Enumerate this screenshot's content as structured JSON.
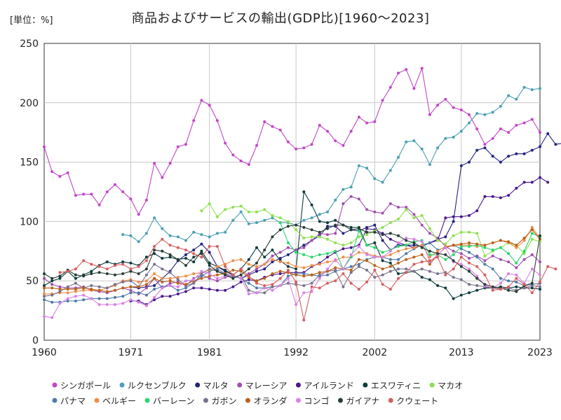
{
  "unit_label": "[単位：%]",
  "title": "商品およびサービスの輸出(GDP比)[1960〜2023]",
  "chart_data": {
    "type": "line",
    "title": "商品およびサービスの輸出(GDP比)[1960〜2023]",
    "unit": "[単位：%]",
    "xlim": [
      1960,
      2023
    ],
    "ylim": [
      0,
      250
    ],
    "x_ticks": [
      1960,
      1971,
      1981,
      1992,
      2002,
      2013,
      2023
    ],
    "y_ticks": [
      0,
      50,
      100,
      150,
      200,
      250
    ],
    "grid": true,
    "legend_position": "bottom",
    "series": [
      {
        "name": "シンガポール",
        "color": "#c246c8",
        "x_start": 1960,
        "values": [
          163,
          142,
          138,
          141,
          122,
          123,
          123,
          114,
          125,
          131,
          125,
          119,
          106,
          118,
          149,
          137,
          149,
          163,
          165,
          185,
          202,
          198,
          185,
          166,
          156,
          151,
          148,
          164,
          184,
          180,
          177,
          167,
          161,
          162,
          165,
          181,
          176,
          168,
          164,
          176,
          188,
          183,
          184,
          202,
          213,
          225,
          228,
          212,
          229,
          190,
          198,
          203,
          196,
          194,
          190,
          178,
          165,
          170,
          178,
          175,
          181,
          183,
          186,
          175
        ]
      },
      {
        "name": "ルクセンブルク",
        "color": "#4aa0b0",
        "x_start": 1970,
        "values": [
          89,
          88,
          83,
          90,
          103,
          94,
          88,
          87,
          84,
          91,
          89,
          87,
          90,
          91,
          101,
          108,
          98,
          99,
          101,
          103,
          99,
          99,
          97,
          101,
          103,
          106,
          108,
          118,
          127,
          129,
          147,
          145,
          136,
          133,
          143,
          154,
          167,
          168,
          161,
          148,
          162,
          170,
          171,
          176,
          183,
          191,
          190,
          192,
          197,
          206,
          203,
          213,
          211,
          212
        ]
      },
      {
        "name": "マルタ",
        "color": "#23237e",
        "x_start": 1971,
        "values": [
          45,
          44,
          45,
          46,
          52,
          58,
          67,
          72,
          76,
          81,
          74,
          62,
          58,
          55,
          52,
          55,
          58,
          60,
          66,
          69,
          72,
          76,
          80,
          84,
          88,
          96,
          96,
          90,
          93,
          92,
          95,
          97,
          84,
          76,
          80,
          80,
          80,
          79,
          82,
          85,
          87,
          100,
          147,
          150,
          160,
          162,
          155,
          150,
          155,
          157,
          157,
          160,
          163,
          174,
          165,
          166,
          166
        ]
      },
      {
        "name": "マレーシア",
        "color": "#a24eaf",
        "x_start": 1960,
        "values": [
          52,
          47,
          45,
          44,
          44,
          45,
          42,
          41,
          40,
          42,
          44,
          42,
          39,
          44,
          52,
          44,
          48,
          49,
          46,
          52,
          55,
          52,
          50,
          53,
          54,
          52,
          56,
          60,
          64,
          71,
          74,
          78,
          76,
          78,
          84,
          90,
          89,
          90,
          115,
          121,
          119,
          110,
          108,
          107,
          115,
          112,
          112,
          106,
          97,
          90,
          86,
          79,
          75,
          73,
          69,
          71,
          67,
          71,
          68,
          66,
          61,
          68,
          72,
          66
        ]
      },
      {
        "name": "アイルランド",
        "color": "#4b178e",
        "x_start": 1971,
        "values": [
          33,
          33,
          30,
          34,
          37,
          37,
          39,
          41,
          44,
          44,
          43,
          42,
          42,
          45,
          49,
          51,
          50,
          53,
          55,
          56,
          57,
          57,
          57,
          62,
          65,
          70,
          74,
          77,
          78,
          80,
          94,
          93,
          90,
          85,
          82,
          80,
          78,
          80,
          82,
          84,
          103,
          104,
          104,
          105,
          109,
          121,
          121,
          120,
          122,
          128,
          133,
          133,
          137,
          133
        ]
      },
      {
        "name": "エスワティニ",
        "color": "#0f3c3c",
        "x_start": 1960,
        "values": [
          46,
          50,
          52,
          58,
          52,
          55,
          58,
          63,
          66,
          64,
          66,
          65,
          63,
          70,
          73,
          69,
          70,
          68,
          69,
          66,
          75,
          65,
          62,
          59,
          55,
          60,
          68,
          78,
          70,
          76,
          67,
          62,
          60,
          125,
          114,
          100,
          99,
          101,
          97,
          95,
          95,
          80,
          82,
          67,
          65,
          56,
          57,
          58,
          53,
          51,
          46,
          44,
          35,
          38,
          40,
          42,
          44,
          44,
          45,
          44,
          45,
          44,
          44,
          43
        ]
      },
      {
        "name": "マカオ",
        "color": "#8ee050",
        "x_start": 1980,
        "values": [
          109,
          115,
          104,
          110,
          112,
          113,
          108,
          108,
          110,
          105,
          103,
          100,
          93,
          86,
          87,
          87,
          85,
          82,
          80,
          82,
          87,
          89,
          92,
          95,
          99,
          102,
          110,
          103,
          105,
          94,
          84,
          81,
          88,
          91,
          91,
          90,
          71,
          75,
          78,
          82,
          80,
          73,
          85,
          83
        ]
      },
      {
        "name": "パナマ",
        "color": "#4f79a8",
        "x_start": 1960,
        "values": [
          34,
          32,
          32,
          33,
          33,
          34,
          35,
          35,
          35,
          36,
          37,
          40,
          40,
          38,
          43,
          45,
          46,
          42,
          44,
          48,
          54,
          58,
          60,
          56,
          54,
          52,
          48,
          44,
          44,
          45,
          46,
          54,
          56,
          56,
          55,
          54,
          55,
          58,
          60,
          62,
          64,
          68,
          70,
          70,
          68,
          68,
          73,
          77,
          80,
          82,
          76,
          78,
          80,
          77,
          74,
          70,
          64,
          60,
          52,
          50,
          49,
          46,
          47,
          48
        ]
      },
      {
        "name": "ベルギー",
        "color": "#ec8d48",
        "x_start": 1960,
        "values": [
          39,
          39,
          40,
          40,
          41,
          42,
          42,
          42,
          44,
          46,
          50,
          51,
          49,
          50,
          56,
          52,
          52,
          53,
          54,
          56,
          57,
          59,
          62,
          64,
          67,
          68,
          64,
          62,
          64,
          68,
          66,
          65,
          62,
          61,
          63,
          64,
          66,
          67,
          70,
          70,
          74,
          73,
          71,
          70,
          72,
          75,
          77,
          78,
          80,
          70,
          75,
          79,
          80,
          80,
          80,
          79,
          80,
          82,
          84,
          82,
          78,
          84,
          95,
          86
        ]
      },
      {
        "name": "バーレーン",
        "color": "#2bd66e",
        "x_start": 1990,
        "values": [
          99,
          82,
          74,
          72,
          70,
          72,
          73,
          75,
          60,
          70,
          92,
          80,
          78,
          74,
          76,
          79,
          80,
          83,
          84,
          72,
          72,
          68,
          72,
          79,
          79,
          80,
          78,
          76,
          78,
          73,
          65,
          75,
          90,
          87
        ]
      },
      {
        "name": "ガボン",
        "color": "#79718c",
        "x_start": 1960,
        "values": [
          37,
          38,
          41,
          45,
          48,
          44,
          46,
          45,
          44,
          47,
          49,
          50,
          45,
          55,
          64,
          60,
          57,
          51,
          46,
          48,
          56,
          60,
          58,
          56,
          53,
          55,
          42,
          40,
          40,
          45,
          46,
          48,
          47,
          46,
          48,
          55,
          58,
          59,
          45,
          57,
          62,
          59,
          53,
          55,
          58,
          60,
          60,
          58,
          60,
          58,
          56,
          57,
          53,
          51,
          47,
          46,
          45,
          44,
          43,
          44,
          42,
          44,
          46,
          45
        ]
      },
      {
        "name": "オランダ",
        "color": "#b9621a",
        "x_start": 1960,
        "values": [
          44,
          44,
          43,
          43,
          43,
          44,
          43,
          42,
          41,
          42,
          44,
          45,
          45,
          47,
          52,
          49,
          50,
          48,
          47,
          50,
          52,
          54,
          55,
          56,
          59,
          58,
          53,
          50,
          52,
          56,
          58,
          57,
          55,
          54,
          55,
          57,
          58,
          61,
          60,
          59,
          68,
          67,
          63,
          60,
          62,
          65,
          68,
          70,
          72,
          64,
          72,
          78,
          80,
          81,
          82,
          81,
          80,
          82,
          84,
          83,
          80,
          86,
          93,
          85
        ]
      },
      {
        "name": "コンゴ",
        "color": "#d882e6",
        "x_start": 1960,
        "values": [
          20,
          19,
          31,
          35,
          37,
          38,
          35,
          30,
          30,
          30,
          31,
          34,
          32,
          29,
          36,
          44,
          46,
          45,
          50,
          51,
          58,
          56,
          52,
          54,
          55,
          52,
          39,
          40,
          44,
          42,
          46,
          52,
          30,
          40,
          41,
          52,
          60,
          68,
          60,
          72,
          79,
          72,
          70,
          70,
          75,
          82,
          86,
          85,
          83,
          66,
          72,
          78,
          66,
          64,
          60,
          54,
          46,
          44,
          48,
          56,
          55,
          48,
          60,
          55
        ]
      },
      {
        "name": "ガイアナ",
        "color": "#263d35",
        "x_start": 1960,
        "values": [
          56,
          52,
          54,
          59,
          55,
          54,
          56,
          57,
          56,
          55,
          56,
          58,
          56,
          60,
          76,
          75,
          72,
          68,
          63,
          70,
          73,
          63,
          58,
          55,
          52,
          55,
          60,
          65,
          76,
          87,
          93,
          96,
          97,
          95,
          93,
          91,
          94,
          97,
          97,
          93,
          94,
          91,
          91,
          89,
          90,
          88,
          84,
          82,
          78,
          75,
          73,
          72,
          67,
          62,
          58,
          52,
          47,
          45,
          44,
          42,
          41,
          46,
          48,
          88
        ]
      },
      {
        "name": "クウェート",
        "color": "#d55f5f",
        "x_start": 1962,
        "values": [
          57,
          58,
          60,
          67,
          64,
          62,
          60,
          63,
          64,
          60,
          62,
          67,
          79,
          85,
          80,
          78,
          76,
          73,
          70,
          79,
          79,
          62,
          55,
          60,
          54,
          48,
          46,
          47,
          52,
          59,
          49,
          17,
          45,
          44,
          48,
          50,
          56,
          48,
          43,
          49,
          59,
          47,
          43,
          52,
          57,
          64,
          66,
          67,
          70,
          55,
          60,
          70,
          65,
          62,
          55,
          42,
          43,
          45,
          52,
          47,
          40,
          49,
          62,
          60
        ]
      }
    ]
  }
}
